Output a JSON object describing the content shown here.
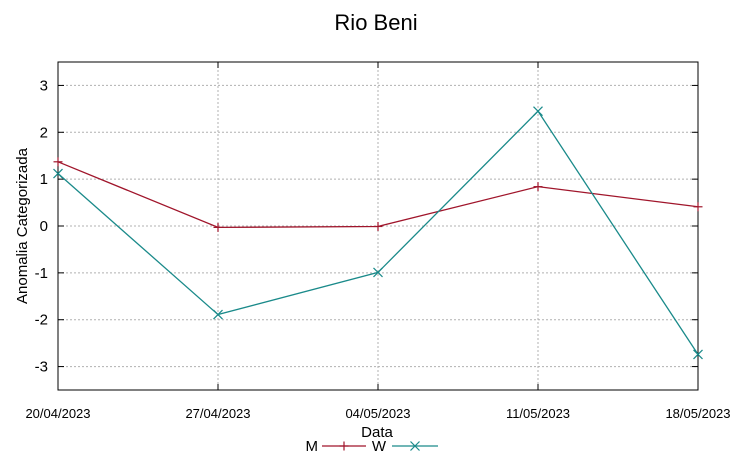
{
  "chart_data": {
    "type": "line",
    "title": "Rio Beni",
    "xlabel": "Data",
    "ylabel": "Anomalia Categorizada",
    "categories": [
      "20/04/2023",
      "27/04/2023",
      "04/05/2023",
      "11/05/2023",
      "18/05/2023"
    ],
    "ylim": [
      -3.5,
      3.5
    ],
    "yticks": [
      3,
      2,
      1,
      0,
      -1,
      -2,
      -3
    ],
    "grid": true,
    "legend_position": "bottom-center",
    "series": [
      {
        "name": "M",
        "color": "#a0152b",
        "marker": "plus",
        "values": [
          1.37,
          -0.03,
          -0.01,
          0.84,
          0.41
        ]
      },
      {
        "name": "W",
        "color": "#1a8a8a",
        "marker": "cross",
        "values": [
          1.12,
          -1.89,
          -0.99,
          2.45,
          -2.74
        ]
      }
    ]
  }
}
